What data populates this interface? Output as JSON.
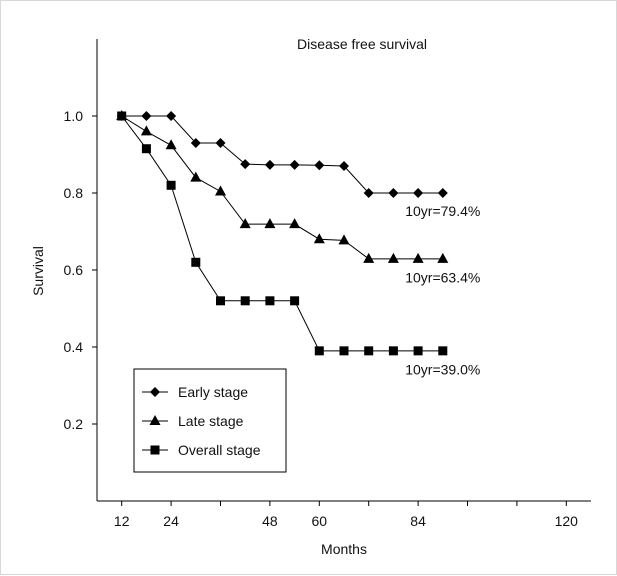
{
  "chart_data": {
    "type": "line",
    "title": "Disease free survival",
    "xlabel": "Months",
    "ylabel": "Survival",
    "xlim": [
      6,
      126
    ],
    "ylim": [
      0,
      1.2
    ],
    "xticks": [
      12,
      24,
      36,
      48,
      60,
      72,
      84,
      96,
      108,
      120
    ],
    "xtick_labels": [
      "12",
      "24",
      "",
      "48",
      "60",
      "",
      "84",
      "",
      "",
      "120"
    ],
    "yticks": [
      0.2,
      0.4,
      0.6,
      0.8,
      1.0
    ],
    "ytick_labels": [
      "0.2",
      "0.4",
      "0.6",
      "0.8",
      "1.0"
    ],
    "grid": false,
    "legend_position": "bottom-left",
    "series": [
      {
        "name": "Early stage",
        "marker": "diamond",
        "x": [
          12,
          18,
          24,
          30,
          36,
          42,
          48,
          54,
          60,
          66,
          72,
          78,
          84,
          90
        ],
        "y": [
          1.0,
          1.0,
          1.0,
          0.93,
          0.93,
          0.875,
          0.873,
          0.873,
          0.872,
          0.87,
          0.8,
          0.8,
          0.8,
          0.8
        ]
      },
      {
        "name": "Late stage",
        "marker": "triangle",
        "x": [
          12,
          18,
          24,
          30,
          36,
          42,
          48,
          54,
          60,
          66,
          72,
          78,
          84,
          90
        ],
        "y": [
          1.0,
          0.96,
          0.924,
          0.84,
          0.804,
          0.719,
          0.719,
          0.719,
          0.68,
          0.677,
          0.629,
          0.629,
          0.629,
          0.629
        ]
      },
      {
        "name": "Overall stage",
        "marker": "square",
        "x": [
          12,
          18,
          24,
          30,
          36,
          42,
          48,
          54,
          60,
          66,
          72,
          78,
          84,
          90
        ],
        "y": [
          1.0,
          0.915,
          0.82,
          0.62,
          0.52,
          0.52,
          0.52,
          0.52,
          0.39,
          0.39,
          0.39,
          0.39,
          0.39,
          0.39
        ]
      }
    ],
    "annotations": [
      {
        "text": "10yr=79.4%",
        "x": 90,
        "y": 0.74
      },
      {
        "text": "10yr=63.4%",
        "x": 90,
        "y": 0.567
      },
      {
        "text": "10yr=39.0%",
        "x": 90,
        "y": 0.328
      }
    ]
  }
}
